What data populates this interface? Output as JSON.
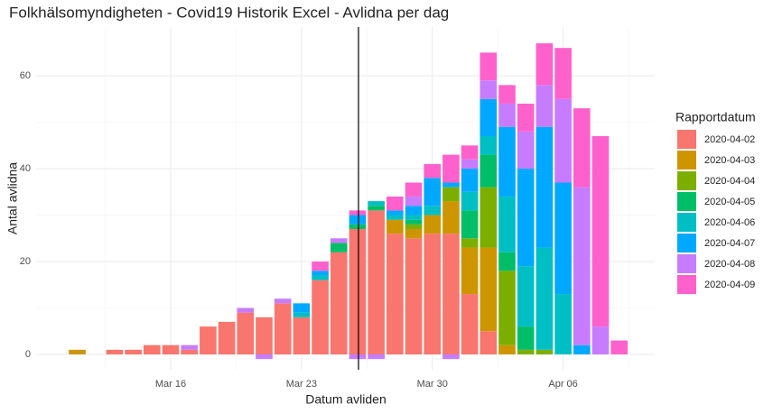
{
  "chart_data": {
    "type": "bar",
    "stacked": true,
    "title": "Folkhälsomyndigheten - Covid19 Historik Excel - Avlidna per dag",
    "xlabel": "Datum avliden",
    "ylabel": "Antal avlidna",
    "legend_title": "Rapportdatum",
    "legend": "right",
    "grid": true,
    "x": [
      11,
      12,
      13,
      14,
      15,
      16,
      17,
      18,
      19,
      20,
      21,
      22,
      23,
      24,
      25,
      26,
      27,
      28,
      29,
      30,
      31,
      32,
      33,
      34,
      35,
      36,
      37,
      38,
      39,
      40
    ],
    "xlim": [
      8.8,
      41.9
    ],
    "xticks": [
      {
        "value": 16,
        "label": "Mar 16"
      },
      {
        "value": 23,
        "label": "Mar 23"
      },
      {
        "value": 30,
        "label": "Mar 30"
      },
      {
        "value": 37,
        "label": "Apr 06"
      }
    ],
    "ylim": [
      -3.3,
      70.5
    ],
    "yticks": [
      0,
      20,
      40,
      60
    ],
    "vline": 26.05,
    "series": [
      {
        "name": "2020-04-02",
        "color": "#f8766d",
        "values": [
          null,
          null,
          1,
          1,
          2,
          2,
          1,
          6,
          7,
          9,
          8,
          11,
          8,
          16,
          22,
          27,
          31,
          26,
          25,
          26,
          26,
          13,
          5,
          null,
          null,
          null,
          null,
          null,
          null,
          null
        ]
      },
      {
        "name": "2020-04-03",
        "color": "#cd9600",
        "values": [
          1,
          null,
          null,
          null,
          null,
          null,
          null,
          null,
          null,
          null,
          null,
          null,
          null,
          null,
          null,
          null,
          null,
          3,
          2,
          4,
          7,
          10,
          18,
          2,
          null,
          null,
          null,
          null,
          null,
          null
        ]
      },
      {
        "name": "2020-04-04",
        "color": "#7cae00",
        "values": [
          null,
          null,
          null,
          null,
          null,
          null,
          null,
          null,
          null,
          null,
          null,
          null,
          null,
          null,
          null,
          null,
          null,
          null,
          1,
          null,
          3,
          2,
          13,
          16,
          1,
          1,
          null,
          null,
          null,
          null
        ]
      },
      {
        "name": "2020-04-05",
        "color": "#00be67",
        "values": [
          null,
          null,
          null,
          null,
          null,
          null,
          null,
          null,
          null,
          null,
          null,
          null,
          null,
          null,
          2,
          1,
          1,
          null,
          1,
          null,
          null,
          6,
          7,
          4,
          5,
          null,
          null,
          null,
          null,
          null
        ]
      },
      {
        "name": "2020-04-06",
        "color": "#00bfc4",
        "values": [
          null,
          null,
          null,
          null,
          null,
          null,
          null,
          null,
          null,
          null,
          null,
          null,
          1,
          1,
          null,
          null,
          1,
          1,
          1,
          2,
          null,
          4,
          4,
          12,
          13,
          22,
          13,
          null,
          null,
          null
        ]
      },
      {
        "name": "2020-04-07",
        "color": "#00a9ff",
        "values": [
          null,
          null,
          null,
          null,
          null,
          null,
          null,
          null,
          null,
          null,
          null,
          null,
          2,
          1,
          null,
          2,
          null,
          1,
          2,
          6,
          1,
          5,
          8,
          15,
          21,
          26,
          24,
          2,
          null,
          null
        ]
      },
      {
        "name": "2020-04-08",
        "color": "#c77cff",
        "values": [
          null,
          null,
          null,
          null,
          null,
          null,
          1,
          null,
          null,
          1,
          -1,
          1,
          null,
          null,
          1,
          -1,
          -1,
          null,
          2,
          null,
          -1,
          2,
          4,
          5,
          8,
          9,
          18,
          34,
          6,
          null
        ]
      },
      {
        "name": "2020-04-09",
        "color": "#ff61cc",
        "values": [
          null,
          null,
          null,
          null,
          null,
          null,
          null,
          null,
          null,
          null,
          null,
          null,
          null,
          2,
          null,
          1,
          null,
          3,
          3,
          3,
          6,
          3,
          6,
          4,
          6,
          9,
          11,
          17,
          41,
          3
        ]
      }
    ]
  }
}
